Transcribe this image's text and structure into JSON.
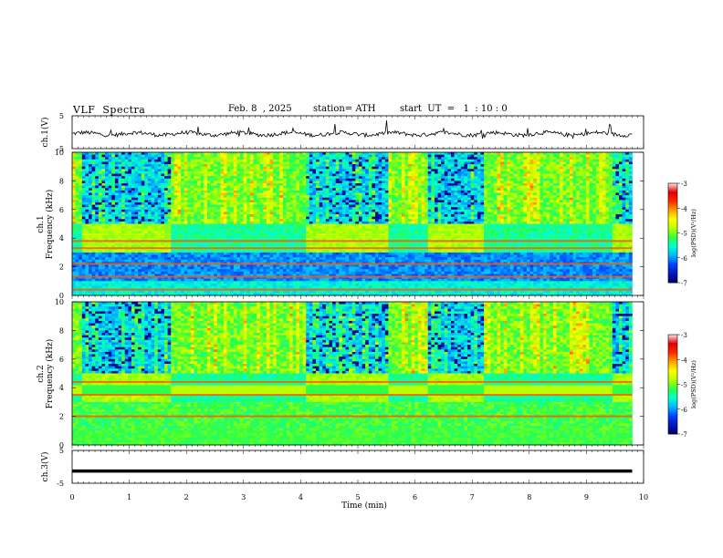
{
  "header": {
    "title": "VLF  Spectra",
    "date": "Feb. 8  , 2025",
    "station": "station= ATH",
    "start_ut": "start  UT  =   1  : 10 : 0"
  },
  "chart_data": [
    {
      "type": "line",
      "panel": "ch1-waveform",
      "ylabel": "ch.1(V)",
      "yticks": [
        "5",
        "-5"
      ],
      "ylim": [
        -5,
        5
      ],
      "xlim": [
        0,
        10
      ],
      "series": [
        {
          "values_desc": "noisy trace near -0.5 V",
          "x": [
            0,
            9.8
          ],
          "y": [
            -0.5,
            -0.5
          ]
        }
      ]
    },
    {
      "type": "heatmap",
      "panel": "ch1-spectrogram",
      "ylabel": "ch.1\nFrequency  (kHz)",
      "yticks": [
        "0",
        "2",
        "4",
        "6",
        "8",
        "10"
      ],
      "ylim": [
        0,
        10
      ],
      "xlim": [
        0,
        10
      ],
      "data_xmax": 9.8,
      "colorbar": {
        "label": "log(PSD)(V²/Hz)",
        "ticks": [
          "-3",
          "-4",
          "-5",
          "-6",
          "-7"
        ],
        "range": [
          -7,
          -3
        ]
      },
      "bands_khz": [
        0.4,
        1.3,
        2.2,
        3.3,
        3.8
      ]
    },
    {
      "type": "heatmap",
      "panel": "ch2-spectrogram",
      "ylabel": "ch.2\nFrequency  (kHz)",
      "yticks": [
        "0",
        "2",
        "4",
        "6",
        "8",
        "10"
      ],
      "ylim": [
        0,
        10
      ],
      "xlim": [
        0,
        10
      ],
      "data_xmax": 9.8,
      "colorbar": {
        "label": "log(PSD)(V²/Hz)",
        "ticks": [
          "-3",
          "-4",
          "-5",
          "-6",
          "-7"
        ],
        "range": [
          -7,
          -3
        ]
      },
      "bands_khz": [
        2.0,
        3.5,
        4.4
      ]
    },
    {
      "type": "line",
      "panel": "ch3-waveform",
      "ylabel": "ch.3(V)",
      "yticks": [
        "5",
        "-5"
      ],
      "ylim": [
        -5,
        5
      ],
      "xlim": [
        0,
        10
      ],
      "xlabel": "Time  (min)",
      "xticks": [
        "0",
        "1",
        "2",
        "3",
        "4",
        "5",
        "6",
        "7",
        "8",
        "9",
        "10"
      ],
      "series": [
        {
          "values_desc": "flat thick trace",
          "x": [
            0,
            9.8
          ],
          "y": [
            -1.3,
            -1.3
          ]
        }
      ]
    }
  ],
  "colors": {
    "colormap": [
      "#000070",
      "#0018b8",
      "#0040ff",
      "#00b8ff",
      "#00ffd0",
      "#30ff40",
      "#b8ff00",
      "#ffff00",
      "#ffa000",
      "#ff2800",
      "#e00000",
      "#ffe6e6"
    ]
  }
}
